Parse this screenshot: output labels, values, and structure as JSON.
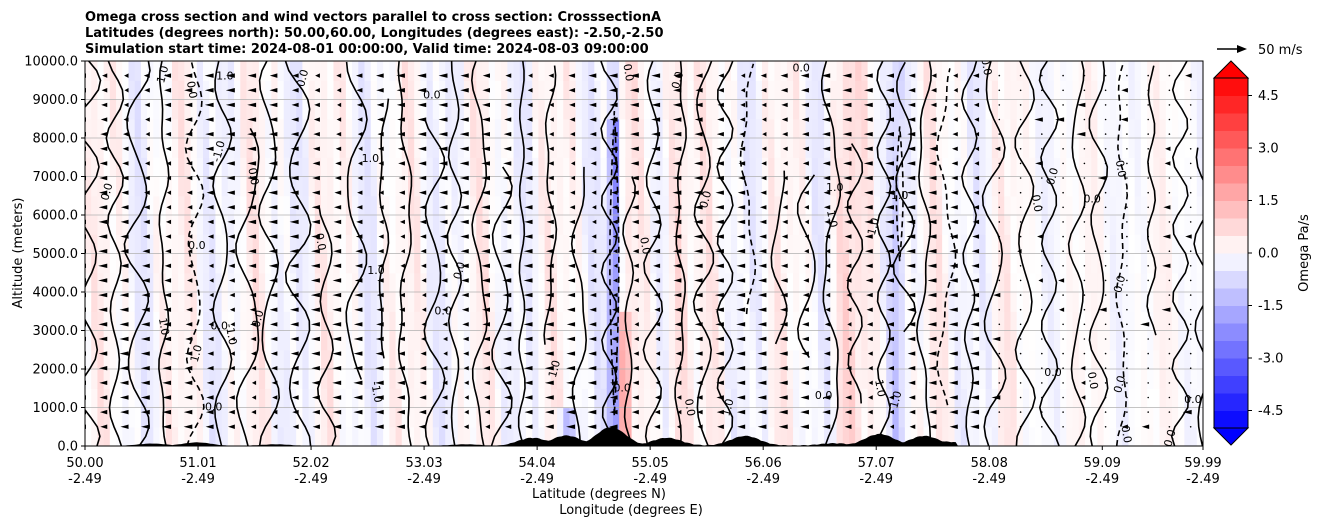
{
  "chart_data": {
    "type": "heatmap",
    "title_lines": [
      "Omega cross section and wind vectors parallel to cross section: CrosssectionA",
      "Latitudes (degrees north): 50.00,60.00, Longitudes (degrees east): -2.50,-2.50",
      "Simulation start time: 2024-08-01 00:00:00, Valid time: 2024-08-03 09:00:00"
    ],
    "ylabel": "Altitude (meters)",
    "xlabel": "Latitude (degrees N)",
    "xlabel2": "Longitude (degrees E)",
    "ylim": [
      0,
      10000
    ],
    "yticks": [
      "0.0",
      "1000.0",
      "2000.0",
      "3000.0",
      "4000.0",
      "5000.0",
      "6000.0",
      "7000.0",
      "8000.0",
      "9000.0",
      "10000.0"
    ],
    "ytick_values": [
      0,
      1000,
      2000,
      3000,
      4000,
      5000,
      6000,
      7000,
      8000,
      9000,
      10000
    ],
    "xlim": [
      50.0,
      59.99
    ],
    "xtick_values": [
      50.0,
      51.01,
      52.02,
      53.03,
      54.04,
      55.05,
      56.06,
      57.07,
      58.08,
      59.09,
      59.99
    ],
    "xticks_lat": [
      "50.00",
      "51.01",
      "52.02",
      "53.03",
      "54.04",
      "55.05",
      "56.06",
      "57.07",
      "58.08",
      "59.09",
      "59.99"
    ],
    "xticks_lon": [
      "-2.49",
      "-2.49",
      "-2.49",
      "-2.49",
      "-2.49",
      "-2.49",
      "-2.49",
      "-2.49",
      "-2.49",
      "-2.49",
      "-2.49"
    ],
    "grid": "horizontal",
    "colorbar": {
      "label": "Omega Pa/s",
      "range": [
        -5.0,
        5.0
      ],
      "ticks": [
        "-4.5",
        "-3.0",
        "-1.5",
        "0.0",
        "1.5",
        "3.0",
        "4.5"
      ],
      "tick_values": [
        -4.5,
        -3.0,
        -1.5,
        0.0,
        1.5,
        3.0,
        4.5
      ],
      "colormap": "bwr",
      "extend": "both"
    },
    "quiver_key": {
      "label": "50 m/s",
      "speed": 50
    },
    "contour_levels": [
      -1.0,
      0.0,
      1.0
    ],
    "contour_label_samples": [
      {
        "text": "1.0",
        "x": 50.7,
        "y": 9650
      },
      {
        "text": "1.0",
        "x": 51.25,
        "y": 9600
      },
      {
        "text": "0.0",
        "x": 50.95,
        "y": 9250
      },
      {
        "text": "0.0",
        "x": 51.95,
        "y": 9550
      },
      {
        "text": "0.0",
        "x": 53.1,
        "y": 9100
      },
      {
        "text": "0.0",
        "x": 54.85,
        "y": 9700
      },
      {
        "text": "0.0",
        "x": 55.3,
        "y": 9500
      },
      {
        "text": "0.0",
        "x": 56.4,
        "y": 9800
      },
      {
        "text": "0.0",
        "x": 58.05,
        "y": 9850
      },
      {
        "text": "-1.0",
        "x": 51.2,
        "y": 7650
      },
      {
        "text": "1.0",
        "x": 52.55,
        "y": 7450
      },
      {
        "text": "0.0",
        "x": 51.5,
        "y": 7000
      },
      {
        "text": "0.0",
        "x": 50.2,
        "y": 6600
      },
      {
        "text": "0.0",
        "x": 51.0,
        "y": 5200
      },
      {
        "text": "0.0",
        "x": 52.1,
        "y": 5300
      },
      {
        "text": "0.0",
        "x": 53.35,
        "y": 4550
      },
      {
        "text": "1.0",
        "x": 52.6,
        "y": 4550
      },
      {
        "text": "0.0",
        "x": 55.0,
        "y": 5200
      },
      {
        "text": "0.0",
        "x": 55.55,
        "y": 6400
      },
      {
        "text": "1.0",
        "x": 56.7,
        "y": 6700
      },
      {
        "text": "1.0",
        "x": 56.67,
        "y": 5900
      },
      {
        "text": "1.0",
        "x": 57.05,
        "y": 5700
      },
      {
        "text": "1.0",
        "x": 57.28,
        "y": 6500
      },
      {
        "text": "0.0",
        "x": 58.5,
        "y": 6300
      },
      {
        "text": "0.0",
        "x": 58.65,
        "y": 7000
      },
      {
        "text": "0.0",
        "x": 59.0,
        "y": 6400
      },
      {
        "text": "0.0",
        "x": 59.25,
        "y": 7200
      },
      {
        "text": "0.0",
        "x": 59.25,
        "y": 4200
      },
      {
        "text": "0.0",
        "x": 53.2,
        "y": 3500
      },
      {
        "text": "1.0",
        "x": 50.7,
        "y": 3100
      },
      {
        "text": "1.0",
        "x": 51.0,
        "y": 2400
      },
      {
        "text": "0.0",
        "x": 51.2,
        "y": 3100
      },
      {
        "text": "-1.0",
        "x": 51.3,
        "y": 2900
      },
      {
        "text": "0.0",
        "x": 51.55,
        "y": 3300
      },
      {
        "text": "0.0",
        "x": 51.15,
        "y": 1000
      },
      {
        "text": "-1.0",
        "x": 52.6,
        "y": 1400
      },
      {
        "text": "1.0",
        "x": 54.2,
        "y": 2000
      },
      {
        "text": "0.0",
        "x": 54.8,
        "y": 1500
      },
      {
        "text": "0.0",
        "x": 55.4,
        "y": 1000
      },
      {
        "text": "1.0",
        "x": 55.75,
        "y": 1000
      },
      {
        "text": "0.0",
        "x": 56.6,
        "y": 1300
      },
      {
        "text": "1.0",
        "x": 57.1,
        "y": 1500
      },
      {
        "text": "1.0",
        "x": 57.25,
        "y": 1200
      },
      {
        "text": "0.0",
        "x": 58.65,
        "y": 1900
      },
      {
        "text": "0.0",
        "x": 59.0,
        "y": 1700
      },
      {
        "text": "0.0",
        "x": 59.25,
        "y": 1600
      },
      {
        "text": "0.0",
        "x": 59.9,
        "y": 1200
      },
      {
        "text": "0.0",
        "x": 59.3,
        "y": 300
      },
      {
        "text": "0.0",
        "x": 59.7,
        "y": 200
      }
    ],
    "terrain_peaks": [
      {
        "x": 50.6,
        "y": 60
      },
      {
        "x": 51.0,
        "y": 90
      },
      {
        "x": 51.7,
        "y": 40
      },
      {
        "x": 53.4,
        "y": 40
      },
      {
        "x": 54.0,
        "y": 200
      },
      {
        "x": 54.3,
        "y": 260
      },
      {
        "x": 54.7,
        "y": 480
      },
      {
        "x": 55.2,
        "y": 200
      },
      {
        "x": 55.9,
        "y": 250
      },
      {
        "x": 56.7,
        "y": 60
      },
      {
        "x": 57.1,
        "y": 300
      },
      {
        "x": 57.5,
        "y": 250
      },
      {
        "x": 57.7,
        "y": 100
      }
    ]
  }
}
